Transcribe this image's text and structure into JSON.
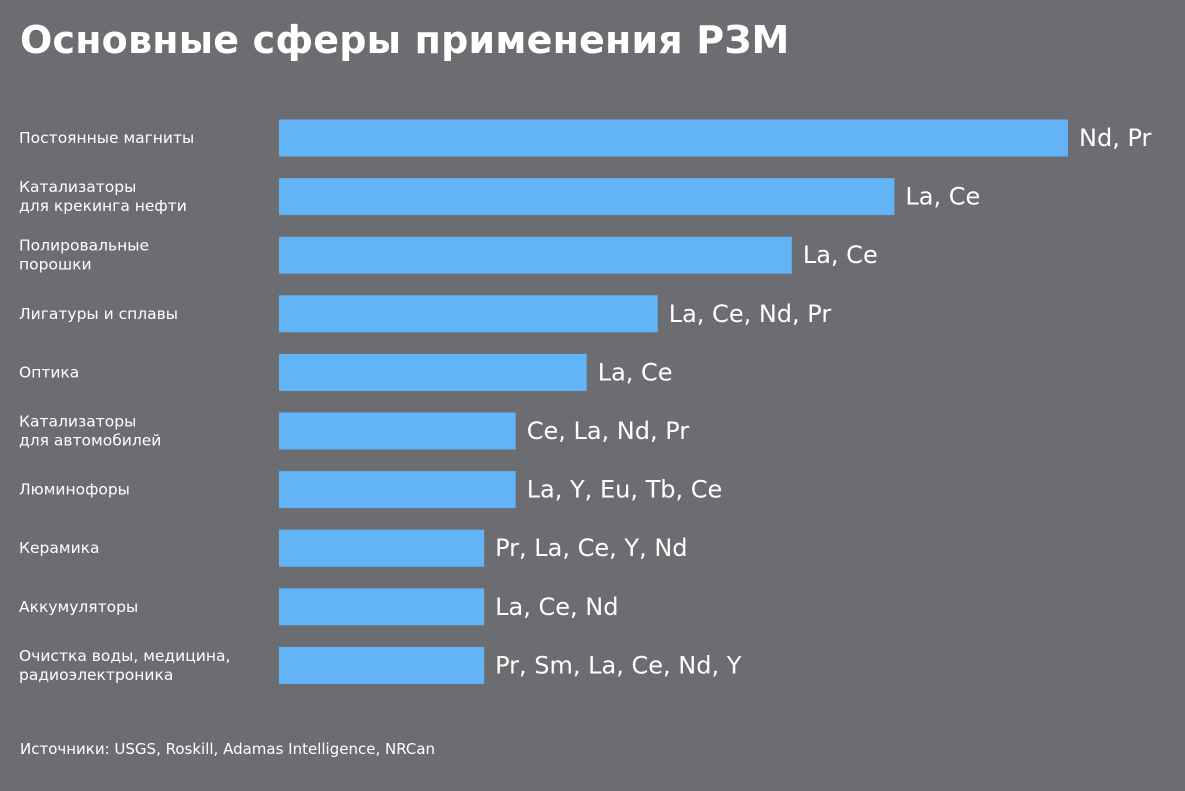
{
  "title": "Основные сферы применения РЗМ",
  "source": "Источники: USGS, Roskill, Adamas Intelligence, NRCan",
  "colors": {
    "background": "#6b6d71",
    "bar": "#63b4f6",
    "text": "#ffffff"
  },
  "chart_data": {
    "type": "bar",
    "orientation": "horizontal",
    "categories": [
      [
        "Постоянные магниты"
      ],
      [
        "Катализаторы",
        "для крекинга нефти"
      ],
      [
        "Полировальные",
        "порошки"
      ],
      [
        "Лигатуры и сплавы"
      ],
      [
        "Оптика"
      ],
      [
        "Катализаторы",
        "для автомобилей"
      ],
      [
        "Люминофоры"
      ],
      [
        "Керамика"
      ],
      [
        "Аккумуляторы"
      ],
      [
        "Очистка воды, медицина,",
        "радиоэлектроника"
      ]
    ],
    "values": [
      100,
      78,
      65,
      48,
      39,
      30,
      30,
      26,
      26,
      26
    ],
    "value_unit": "relative bar length (no axis shown)",
    "bar_labels": [
      "Nd, Pr",
      "La, Ce",
      "La, Ce",
      "La, Ce, Nd, Pr",
      "La, Ce",
      "Ce, La, Nd, Pr",
      "La, Y, Eu, Tb, Ce",
      "Pr, La, Ce, Y, Nd",
      "La, Ce, Nd",
      "Pr, Sm, La, Ce, Nd, Y"
    ],
    "xlim": [
      0,
      100
    ],
    "grid": false,
    "axes_visible": false
  }
}
